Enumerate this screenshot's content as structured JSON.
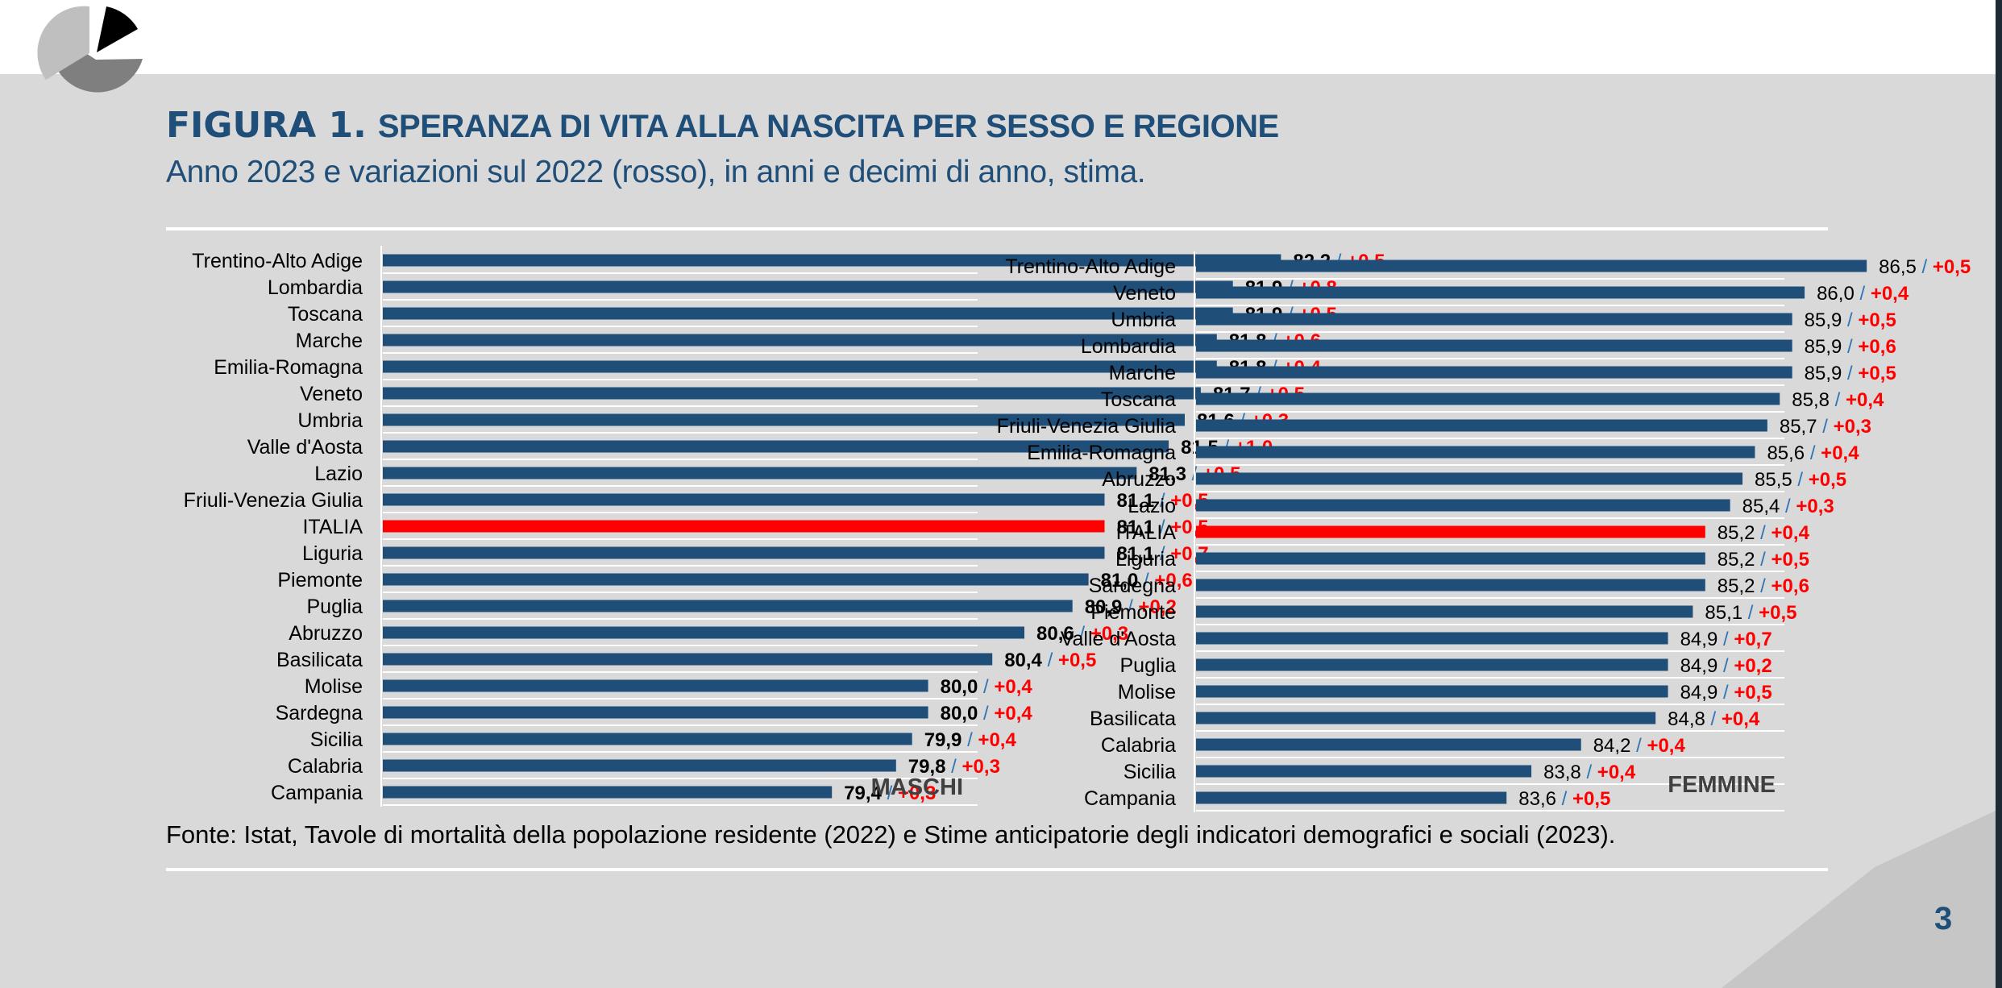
{
  "figure": {
    "number": "FIGURA 1.",
    "title": "SPERANZA DI VITA ALLA NASCITA PER SESSO E REGIONE",
    "subtitle": "Anno 2023 e variazioni sul 2022 (rosso), in anni e decimi di anno, stima.",
    "source": "Fonte: Istat, Tavole di mortalità della popolazione residente (2022) e Stime anticipatorie degli indicatori demografici e sociali (2023).",
    "page_number": "3"
  },
  "colors": {
    "bar": "#1f4e79",
    "highlight": "#ff0000",
    "change": "#ff0000",
    "separator": "#2e75b6"
  },
  "chart_data": [
    {
      "type": "bar",
      "orientation": "horizontal",
      "panel_label": "MASCHI",
      "highlight": "ITALIA",
      "categories": [
        "Trentino-Alto Adige",
        "Lombardia",
        "Toscana",
        "Marche",
        "Emilia-Romagna",
        "Veneto",
        "Umbria",
        "Valle d'Aosta",
        "Lazio",
        "Friuli-Venezia Giulia",
        "ITALIA",
        "Liguria",
        "Piemonte",
        "Puglia",
        "Abruzzo",
        "Basilicata",
        "Molise",
        "Sardegna",
        "Sicilia",
        "Calabria",
        "Campania"
      ],
      "values": [
        82.2,
        81.9,
        81.9,
        81.8,
        81.8,
        81.7,
        81.6,
        81.5,
        81.3,
        81.1,
        81.1,
        81.1,
        81.0,
        80.9,
        80.6,
        80.4,
        80.0,
        80.0,
        79.9,
        79.8,
        79.4
      ],
      "value_labels": [
        "82,2",
        "81,9",
        "81,9",
        "81,8",
        "81,8",
        "81,7",
        "81,6",
        "81,5",
        "81,3",
        "81,1",
        "81,1",
        "81,1",
        "81,0",
        "80,9",
        "80,6",
        "80,4",
        "80,0",
        "80,0",
        "79,9",
        "79,8",
        "79,4"
      ],
      "changes": [
        0.5,
        0.8,
        0.5,
        0.6,
        0.4,
        0.5,
        0.3,
        1.0,
        0.5,
        0.5,
        0.5,
        0.7,
        0.6,
        0.2,
        0.3,
        0.5,
        0.4,
        0.4,
        0.4,
        0.3,
        0.3
      ],
      "change_labels": [
        "+0,5",
        "+0,8",
        "+0,5",
        "+0,6",
        "+0,4",
        "+0,5",
        "+0,3",
        "+1,0",
        "+0,5",
        "+0,5",
        "+0,5",
        "+0,7",
        "+0,6",
        "+0,2",
        "+0,3",
        "+0,5",
        "+0,4",
        "+0,4",
        "+0,4",
        "+0,3",
        "+0,3"
      ]
    },
    {
      "type": "bar",
      "orientation": "horizontal",
      "panel_label": "FEMMINE",
      "highlight": "ITALIA",
      "categories": [
        "Trentino-Alto Adige",
        "Veneto",
        "Umbria",
        "Lombardia",
        "Marche",
        "Toscana",
        "Friuli-Venezia Giulia",
        "Emilia-Romagna",
        "Abruzzo",
        "Lazio",
        "ITALIA",
        "Liguria",
        "Sardegna",
        "Piemonte",
        "Valle d'Aosta",
        "Puglia",
        "Molise",
        "Basilicata",
        "Calabria",
        "Sicilia",
        "Campania"
      ],
      "values": [
        86.5,
        86.0,
        85.9,
        85.9,
        85.9,
        85.8,
        85.7,
        85.6,
        85.5,
        85.4,
        85.2,
        85.2,
        85.2,
        85.1,
        84.9,
        84.9,
        84.9,
        84.8,
        84.2,
        83.8,
        83.6
      ],
      "value_labels": [
        "86,5",
        "86,0",
        "85,9",
        "85,9",
        "85,9",
        "85,8",
        "85,7",
        "85,6",
        "85,5",
        "85,4",
        "85,2",
        "85,2",
        "85,2",
        "85,1",
        "84,9",
        "84,9",
        "84,9",
        "84,8",
        "84,2",
        "83,8",
        "83,6"
      ],
      "changes": [
        0.5,
        0.4,
        0.5,
        0.6,
        0.5,
        0.4,
        0.3,
        0.4,
        0.5,
        0.3,
        0.4,
        0.5,
        0.6,
        0.5,
        0.7,
        0.2,
        0.5,
        0.4,
        0.4,
        0.4,
        0.5
      ],
      "change_labels": [
        "+0,5",
        "+0,4",
        "+0,5",
        "+0,6",
        "+0,5",
        "+0,4",
        "+0,3",
        "+0,4",
        "+0,5",
        "+0,3",
        "+0,4",
        "+0,5",
        "+0,6",
        "+0,5",
        "+0,7",
        "+0,2",
        "+0,5",
        "+0,4",
        "+0,4",
        "+0,4",
        "+0,5"
      ]
    }
  ]
}
